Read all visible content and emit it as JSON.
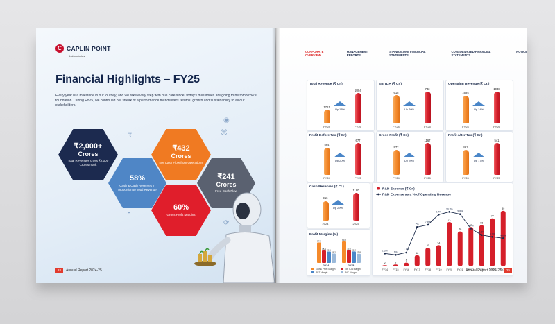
{
  "left_page": {
    "brand": {
      "name": "CAPLIN POINT",
      "sub": "Laboratories"
    },
    "title": "Financial Highlights – FY25",
    "description": "Every year is a milestone in our journey, and we take every step with due care since, today's milestones are going to be tomorrow's foundation. During FY25, we continued our streak of a performance that delivers returns, growth and sustainability to all our stakeholders.",
    "hexagons": {
      "revenue": {
        "value": "₹2,000+",
        "unit": "Crores",
        "caption": "Total Revenues cross ₹2,000 Crores mark"
      },
      "reserves": {
        "value": "58%",
        "caption": "Cash & Cash Reserves in proportion to Total Revenue"
      },
      "net_cash": {
        "value": "₹432",
        "unit": "Crores",
        "caption": "Net Cash Flow from Operations"
      },
      "gross_margin": {
        "value": "60%",
        "caption": "Gross Profit Margins"
      },
      "free_cash": {
        "value": "₹241",
        "unit": "Crores",
        "caption": "Free Cash Flow"
      }
    },
    "footer": {
      "page": "24",
      "text": "Annual Report 2024-25"
    }
  },
  "right_page": {
    "nav": [
      {
        "label": "CORPORATE OVERVIEW",
        "active": true
      },
      {
        "label": "MANAGEMENT REPORTS",
        "active": false
      },
      {
        "label": "STANDALONE FINANCIAL STATEMENTS",
        "active": false
      },
      {
        "label": "CONSOLIDATED FINANCIAL STATEMENTS",
        "active": false
      },
      {
        "label": "NOTICE",
        "active": false
      }
    ],
    "cards": {
      "total_revenue": {
        "title": "Total Revenue (₹ Cr.)",
        "a_val": "1761",
        "b_val": "2094",
        "a_year": "FY24",
        "b_year": "FY25",
        "growth": "Up 18%"
      },
      "ebitda": {
        "title": "EBITDA (₹ Cr.)",
        "a_val": "618",
        "b_val": "743",
        "a_year": "FY24",
        "b_year": "FY25",
        "growth": "Up 20%"
      },
      "operating_revenue": {
        "title": "Operating Revenue (₹ Cr.)",
        "a_val": "1694",
        "b_val": "1938",
        "a_year": "FY24",
        "b_year": "FY25",
        "growth": "Up 14%"
      },
      "pbt": {
        "title": "Profit Before Tax (₹ Cr.)",
        "a_val": "564",
        "b_val": "677",
        "a_year": "FY24",
        "b_year": "FY25",
        "growth": "Up 20%"
      },
      "gross_profit": {
        "title": "Gross Profit (₹ Cr.)",
        "a_val": "972",
        "b_val": "1167",
        "a_year": "FY24",
        "b_year": "FY25",
        "growth": "Up 20%"
      },
      "pat": {
        "title": "Profit After Tax (₹ Cr.)",
        "a_val": "461",
        "b_val": "541",
        "a_year": "FY24",
        "b_year": "FY25",
        "growth": "Up 17%"
      },
      "cash_reserves": {
        "title": "Cash Reserves (₹ Cr.)",
        "a_val": "916",
        "b_val": "1180",
        "a_year": "2024",
        "b_year": "2025",
        "growth": "Up 29%"
      }
    },
    "footer": {
      "page": "25",
      "text": "Annual Report 2024-25"
    }
  },
  "chart_data": [
    {
      "type": "bar",
      "title": "Profit Margins (%)",
      "categories": [
        "2024",
        "2025"
      ],
      "series": [
        {
          "name": "Gross Profit Margin",
          "values": [
            57.3,
            60.2
          ]
        },
        {
          "name": "EBITDA Margin",
          "values": [
            35.1,
            35.5
          ]
        },
        {
          "name": "PBT Margin",
          "values": [
            32.1,
            32.3
          ]
        },
        {
          "name": "PAT Margin",
          "values": [
            26.2,
            25.8
          ]
        }
      ],
      "colors": [
        "#f58a2b",
        "#d51f2a",
        "#4a86c8",
        "#9bb9d9"
      ],
      "ylim": [
        0,
        70
      ]
    },
    {
      "type": "bar",
      "categories": [
        "FY14",
        "FY15",
        "FY16",
        "FY17",
        "FY18",
        "FY19",
        "FY20",
        "FY21",
        "FY22",
        "FY23",
        "FY24",
        "FY25"
      ],
      "series": [
        {
          "name": "R&D Expense (₹ Cr.)",
          "values": [
            2,
            3,
            6,
            18,
            30,
            34,
            71,
            56,
            63,
            66,
            77,
            89
          ]
        },
        {
          "name": "R&D Expense as a % of Operating Revenue",
          "values": [
            1.3,
            1.0,
            1.5,
            7.0,
            7.5,
            9.7,
            10.3,
            9.8,
            6.7,
            5.3,
            4.9,
            4.6
          ]
        }
      ],
      "ylim": [
        0,
        100
      ],
      "legend": "top-left"
    }
  ]
}
